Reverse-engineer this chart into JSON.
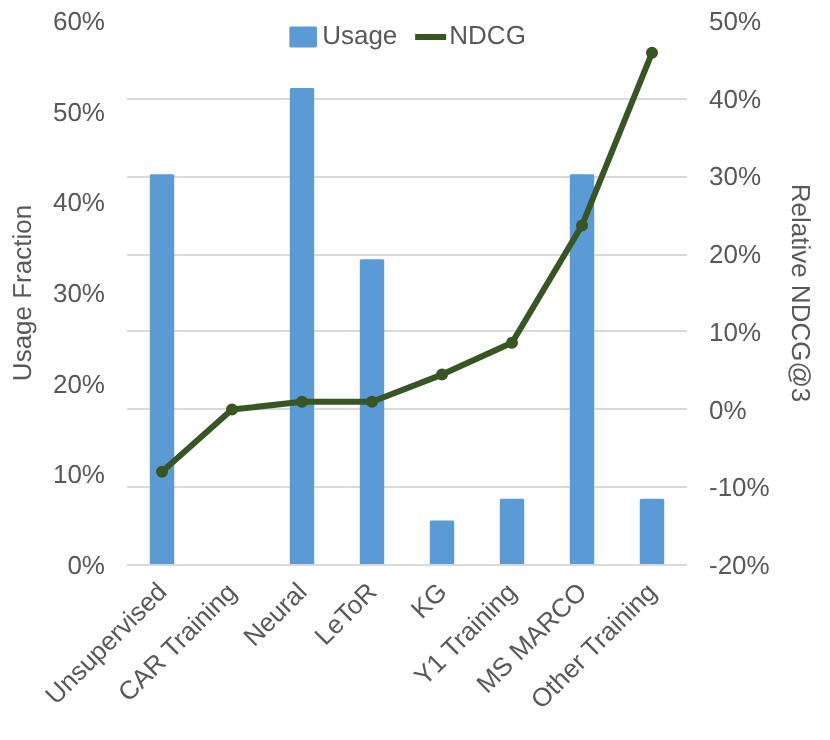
{
  "chart_data": {
    "type": "bar",
    "ylabel": "Usage Fraction",
    "y2label": "Relative NDCG@3",
    "categories": [
      "Unsupervised",
      "CAR Training",
      "Neural",
      "LeToR",
      "KG",
      "Y1 Training",
      "MS MARCO",
      "Other Training"
    ],
    "series": [
      {
        "name": "Usage",
        "color": "#5b9bd5",
        "values": [
          0.43,
          0,
          0.525,
          0.336,
          0.048,
          0.072,
          0.43,
          0.072
        ]
      },
      {
        "name": "NDCG",
        "type": "line",
        "axis": "y2",
        "color": "#375623",
        "marker": "circle",
        "values": [
          -0.08,
          0,
          0.01,
          0.01,
          0.045,
          0.086,
          0.237,
          0.459
        ]
      }
    ],
    "ylim": [
      0,
      0.6
    ],
    "yticks": [
      {
        "value": 0,
        "label": "0%"
      },
      {
        "value": 0.1,
        "label": "10%"
      },
      {
        "value": 0.2,
        "label": "20%"
      },
      {
        "value": 0.3,
        "label": "30%"
      },
      {
        "value": 0.4,
        "label": "40%"
      },
      {
        "value": 0.5,
        "label": "50%"
      },
      {
        "value": 0.6,
        "label": "60%"
      }
    ],
    "y2lim": [
      -0.2,
      0.5
    ],
    "y2ticks": [
      {
        "value": -0.2,
        "label": "-20%"
      },
      {
        "value": -0.1,
        "label": "-10%"
      },
      {
        "value": 0,
        "label": "0%"
      },
      {
        "value": 0.1,
        "label": "10%"
      },
      {
        "value": 0.2,
        "label": "20%"
      },
      {
        "value": 0.3,
        "label": "30%"
      },
      {
        "value": 0.4,
        "label": "40%"
      },
      {
        "value": 0.5,
        "label": "50%"
      }
    ],
    "grid": "y2",
    "legend": "top"
  }
}
